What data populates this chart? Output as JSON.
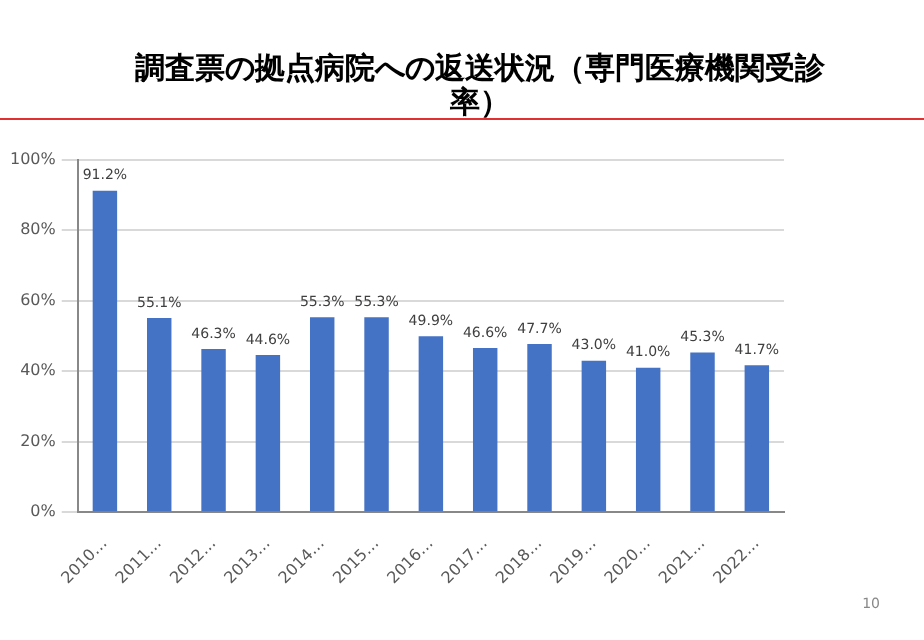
{
  "chart_data": {
    "type": "bar",
    "title": "調査票の拠点病院への返送状況（専門医療機関受診率）",
    "categories": [
      "2010…",
      "2011…",
      "2012…",
      "2013…",
      "2014…",
      "2015…",
      "2016…",
      "2017…",
      "2018…",
      "2019…",
      "2020…",
      "2021…",
      "2022…"
    ],
    "values": [
      91.2,
      55.1,
      46.3,
      44.6,
      55.3,
      55.3,
      49.9,
      46.6,
      47.7,
      43.0,
      41.0,
      45.3,
      41.7
    ],
    "value_labels": [
      "91.2%",
      "55.1%",
      "46.3%",
      "44.6%",
      "55.3%",
      "55.3%",
      "49.9%",
      "46.6%",
      "47.7%",
      "43.0%",
      "41.0%",
      "45.3%",
      "41.7%"
    ],
    "color": "#4472c4",
    "ylim": [
      0,
      100
    ],
    "yticks": [
      {
        "value": 0,
        "label": "0%"
      },
      {
        "value": 20,
        "label": "20%"
      },
      {
        "value": 40,
        "label": "40%"
      },
      {
        "value": 60,
        "label": "60%"
      },
      {
        "value": 80,
        "label": "80%"
      },
      {
        "value": 100,
        "label": "100%"
      }
    ],
    "grid": "y",
    "legend": false,
    "annotations": [
      "10"
    ]
  }
}
